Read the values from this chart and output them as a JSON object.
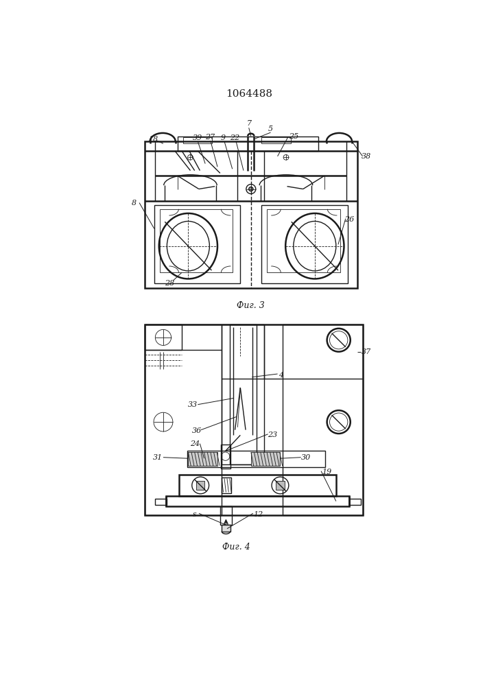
{
  "title": "1064488",
  "fig3_label": "Фиг. 3",
  "fig4_label": "Фиг. 4",
  "line_color": "#1a1a1a"
}
